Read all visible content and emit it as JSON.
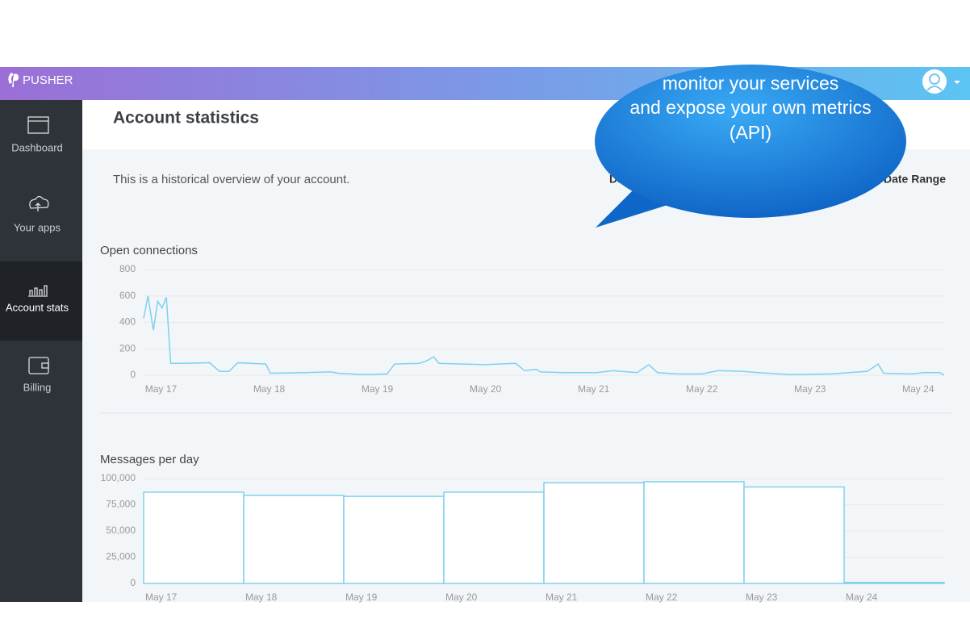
{
  "header": {
    "logo": "PUSHER"
  },
  "sidebar": {
    "items": [
      "Dashboard",
      "Your apps",
      "Account stats",
      "Billing"
    ]
  },
  "page": {
    "title": "Account statistics",
    "description": "This is a historical overview of your account.",
    "tabs": [
      "Day",
      "om Date Range"
    ]
  },
  "callout": {
    "lines": [
      "monitor your services",
      "and expose your own metrics",
      "(API)"
    ]
  },
  "chart_data": [
    {
      "type": "line",
      "title": "Open connections",
      "color": "#7fd0f0",
      "x": [
        16.84,
        16.88,
        16.93,
        16.97,
        17.01,
        17.05,
        17.09,
        17.22,
        17.45,
        17.54,
        17.63,
        17.71,
        17.97,
        18.01,
        18.34,
        18.57,
        18.64,
        18.87,
        19.09,
        19.16,
        19.39,
        19.46,
        19.52,
        19.57,
        19.99,
        20.28,
        20.36,
        20.47,
        20.51,
        20.73,
        21.03,
        21.18,
        21.4,
        21.51,
        21.59,
        21.78,
        22.0,
        22.15,
        22.37,
        22.52,
        22.82,
        23.19,
        23.53,
        23.63,
        23.68,
        23.94,
        24.05,
        24.2,
        24.24
      ],
      "values": [
        430,
        600,
        340,
        560,
        510,
        590,
        90,
        90,
        95,
        30,
        30,
        95,
        85,
        15,
        20,
        25,
        15,
        5,
        10,
        85,
        90,
        110,
        140,
        90,
        80,
        90,
        35,
        45,
        25,
        20,
        20,
        35,
        20,
        80,
        20,
        10,
        10,
        35,
        30,
        20,
        5,
        10,
        30,
        85,
        15,
        10,
        20,
        20,
        0
      ],
      "xlim": [
        16.84,
        24.24
      ],
      "xticks": [
        {
          "value": 17,
          "label": "May 17"
        },
        {
          "value": 18,
          "label": "May 18"
        },
        {
          "value": 19,
          "label": "May 19"
        },
        {
          "value": 20,
          "label": "May 20"
        },
        {
          "value": 21,
          "label": "May 21"
        },
        {
          "value": 22,
          "label": "May 22"
        },
        {
          "value": 23,
          "label": "May 23"
        },
        {
          "value": 24,
          "label": "May 24"
        }
      ],
      "ylim": [
        0,
        800
      ],
      "yticks": [
        0,
        200,
        400,
        600,
        800
      ],
      "grid": true
    },
    {
      "type": "bar",
      "title": "Messages per day",
      "color": "#7fd0f0",
      "categories": [
        "May 17",
        "May 18",
        "May 19",
        "May 20",
        "May 21",
        "May 22",
        "May 23",
        "May 24"
      ],
      "values": [
        87000,
        84000,
        83000,
        87000,
        96000,
        97000,
        92000,
        1000
      ],
      "ylim": [
        0,
        100000
      ],
      "yticks": [
        0,
        {
          "value": 25000,
          "label": "25,000"
        },
        {
          "value": 50000,
          "label": "50,000"
        },
        {
          "value": 75000,
          "label": "75,000"
        },
        {
          "value": 100000,
          "label": "100,000"
        }
      ],
      "grid": true
    }
  ]
}
